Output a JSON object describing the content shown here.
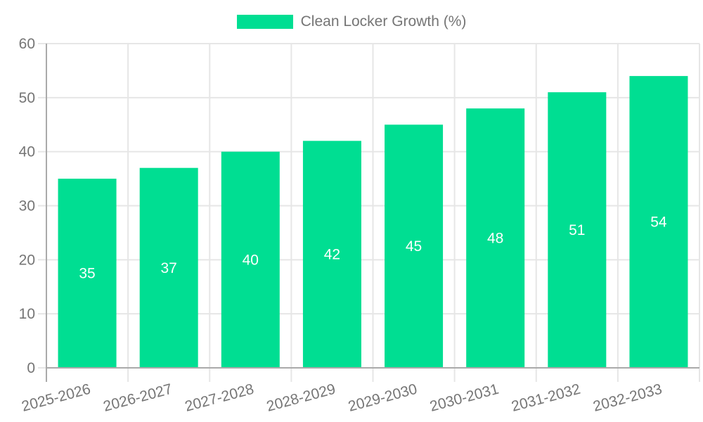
{
  "chart_data": {
    "type": "bar",
    "title": "Clean Locker Growth (%)",
    "legend_label": "Clean Locker Growth (%)",
    "legend_position": "top-center",
    "categories": [
      "2025-2026",
      "2026-2027",
      "2027-2028",
      "2028-2029",
      "2029-2030",
      "2030-2031",
      "2031-2032",
      "2032-2033"
    ],
    "values": [
      35,
      37,
      40,
      42,
      45,
      48,
      51,
      54
    ],
    "value_labels_shown": true,
    "xlabel": "",
    "ylabel": "",
    "ylim": [
      0,
      60
    ],
    "yticks": [
      0,
      10,
      20,
      30,
      40,
      50,
      60
    ],
    "grid": true,
    "xticklabel_rotation_deg": -15,
    "colors": {
      "bar": "#00de92",
      "axis": "#aaaaaa",
      "grid": "#e6e6e6",
      "tick_label": "#757575",
      "legend_text": "#757575",
      "value_label": "#ffffff",
      "background": "#ffffff"
    }
  }
}
